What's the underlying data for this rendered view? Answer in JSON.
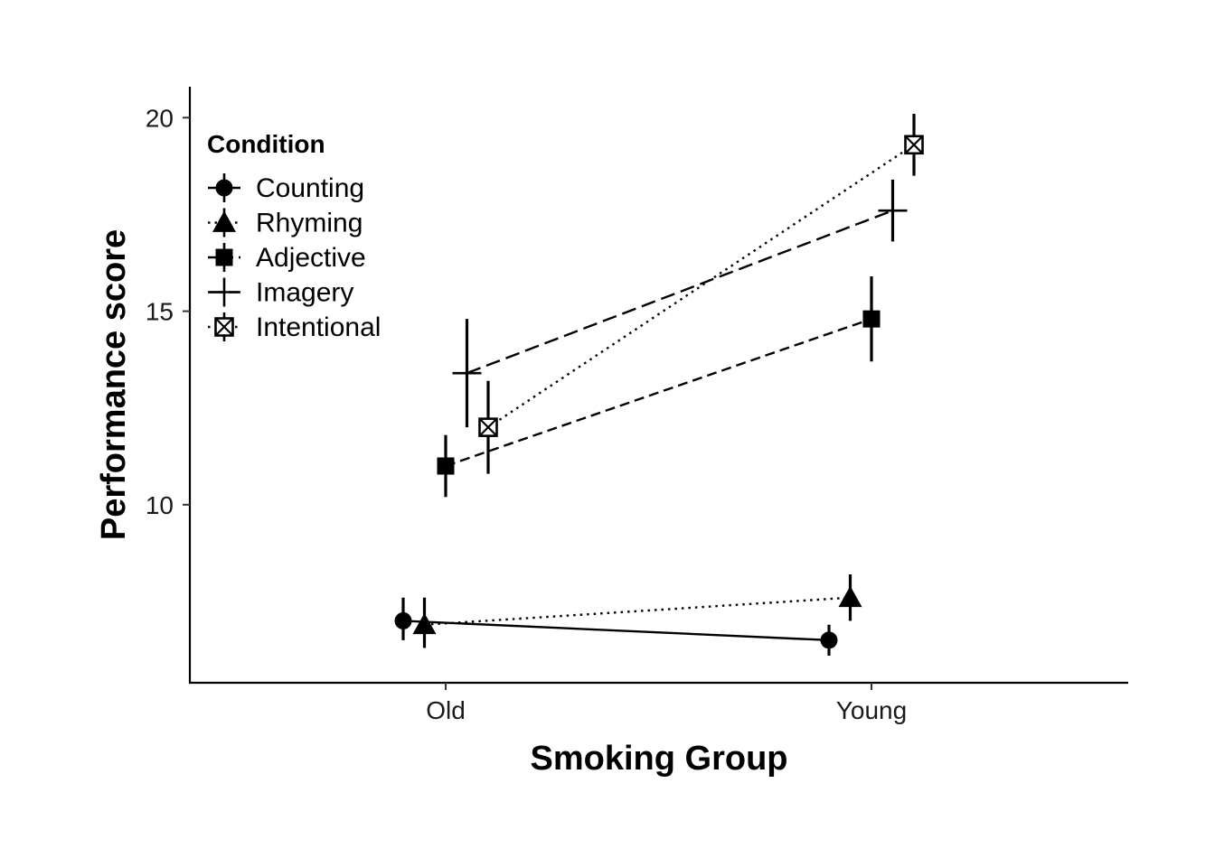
{
  "chart_data": {
    "type": "line",
    "xlabel": "Smoking Group",
    "ylabel": "Performance score",
    "categories": [
      "Old",
      "Young"
    ],
    "ylim": [
      5.4,
      20.8
    ],
    "yticks": [
      10,
      15,
      20
    ],
    "grid": false,
    "legend": {
      "title": "Condition",
      "placement": "top-left"
    },
    "series": [
      {
        "name": "Counting",
        "marker": "circle",
        "linetype": "solid",
        "values": [
          7.0,
          6.5
        ],
        "lower": [
          6.5,
          6.1
        ],
        "upper": [
          7.6,
          6.9
        ]
      },
      {
        "name": "Rhyming",
        "marker": "triangle",
        "linetype": "dotted",
        "values": [
          6.9,
          7.6
        ],
        "lower": [
          6.3,
          7.0
        ],
        "upper": [
          7.6,
          8.2
        ]
      },
      {
        "name": "Adjective",
        "marker": "square",
        "linetype": "dashed",
        "values": [
          11.0,
          14.8
        ],
        "lower": [
          10.2,
          13.7
        ],
        "upper": [
          11.8,
          15.9
        ]
      },
      {
        "name": "Imagery",
        "marker": "plus",
        "linetype": "longdash",
        "values": [
          13.4,
          17.6
        ],
        "lower": [
          12.0,
          16.8
        ],
        "upper": [
          14.8,
          18.4
        ]
      },
      {
        "name": "Intentional",
        "marker": "boxcross",
        "linetype": "dotted",
        "values": [
          12.0,
          19.3
        ],
        "lower": [
          10.8,
          18.5
        ],
        "upper": [
          13.2,
          20.1
        ]
      }
    ]
  }
}
